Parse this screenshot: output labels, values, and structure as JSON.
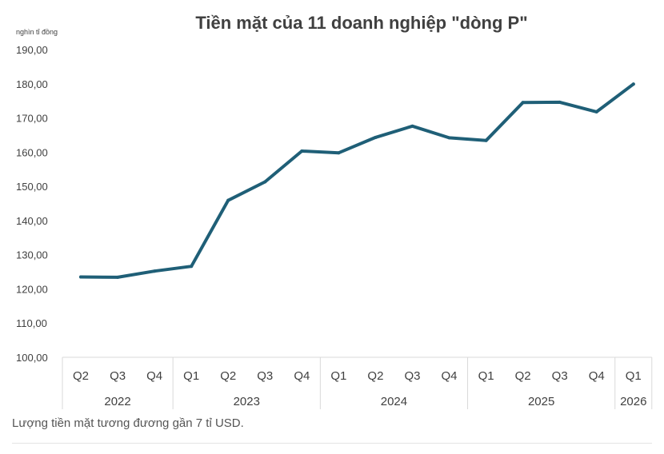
{
  "chart_data": {
    "type": "line",
    "title": "Tiền mặt của 11 doanh nghiệp \"dòng P\"",
    "ylabel": "nghìn tỉ đồng",
    "ylim": [
      100,
      190
    ],
    "yticks": [
      "190,00",
      "180,00",
      "170,00",
      "160,00",
      "150,00",
      "140,00",
      "130,00",
      "120,00",
      "110,00",
      "100,00"
    ],
    "quarters": [
      "Q2",
      "Q3",
      "Q4",
      "Q1",
      "Q2",
      "Q3",
      "Q4",
      "Q1",
      "Q2",
      "Q3",
      "Q4",
      "Q1",
      "Q2",
      "Q3",
      "Q4",
      "Q1"
    ],
    "years": [
      {
        "label": "2022",
        "count": 3
      },
      {
        "label": "2023",
        "count": 4
      },
      {
        "label": "2024",
        "count": 4
      },
      {
        "label": "2025",
        "count": 4
      },
      {
        "label": "2026",
        "count": 1
      }
    ],
    "series": [
      {
        "values": [
          123.5,
          123.4,
          125.2,
          126.6,
          145.9,
          151.3,
          160.3,
          159.8,
          164.3,
          167.6,
          164.2,
          163.4,
          174.5,
          174.6,
          171.8,
          179.9
        ]
      }
    ],
    "grid": false,
    "legend": "none",
    "line_color": "#1f5f77",
    "axis_color": "#d9d9d9"
  },
  "caption": "Lượng tiền mặt tương đương gần 7 tỉ USD."
}
